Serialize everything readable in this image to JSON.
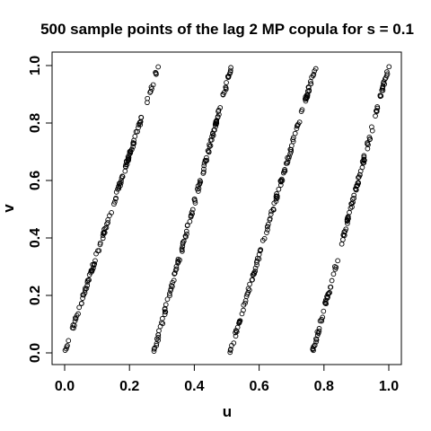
{
  "chart_data": {
    "type": "scatter",
    "title": "500 sample points of the lag 2 MP copula for s = 0.1",
    "xlabel": "u",
    "ylabel": "v",
    "xlim": [
      0,
      1
    ],
    "ylim": [
      0,
      1
    ],
    "x_ticks": [
      "0.0",
      "0.2",
      "0.4",
      "0.6",
      "0.8",
      "1.0"
    ],
    "y_ticks": [
      "0.0",
      "0.2",
      "0.4",
      "0.6",
      "0.8",
      "1.0"
    ],
    "grid": false,
    "marker": "open-circle",
    "n_points": 500,
    "bands": [
      {
        "u_start": 0.0,
        "v_start": 0.0,
        "u_end": 0.29,
        "v_end": 1.0
      },
      {
        "u_start": 0.275,
        "v_start": 0.0,
        "u_end": 0.515,
        "v_end": 1.0
      },
      {
        "u_start": 0.51,
        "v_start": 0.0,
        "u_end": 0.775,
        "v_end": 1.0
      },
      {
        "u_start": 0.765,
        "v_start": 0.0,
        "u_end": 1.0,
        "v_end": 1.0
      }
    ]
  }
}
